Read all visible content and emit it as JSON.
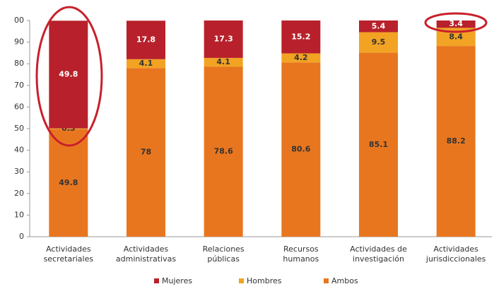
{
  "chart_data": {
    "type": "stacked_bar",
    "categories": [
      [
        "Actividades",
        "secretariales"
      ],
      [
        "Actividades",
        "administrativas"
      ],
      [
        "Relaciones",
        "públicas"
      ],
      [
        "Recursos",
        "humanos"
      ],
      [
        "Actividades de",
        "investigación"
      ],
      [
        "Actividades",
        "jurisdiccionales"
      ]
    ],
    "series": [
      {
        "name": "Ambos",
        "color": "#e8761f",
        "values": [
          49.8,
          78,
          78.6,
          80.6,
          85.1,
          88.2
        ]
      },
      {
        "name": "Hombres",
        "color": "#f2a323",
        "values": [
          0.3,
          4.1,
          4.1,
          4.2,
          9.5,
          8.4
        ]
      },
      {
        "name": "Mujeres",
        "color": "#b8212b",
        "values": [
          49.8,
          17.8,
          17.3,
          15.2,
          5.4,
          3.4
        ]
      }
    ],
    "ylim": [
      0,
      100
    ],
    "yticks": [
      0,
      10,
      20,
      30,
      40,
      50,
      60,
      70,
      80,
      90,
      {
        "value": 100,
        "label": "00"
      }
    ],
    "grid": false
  }
}
